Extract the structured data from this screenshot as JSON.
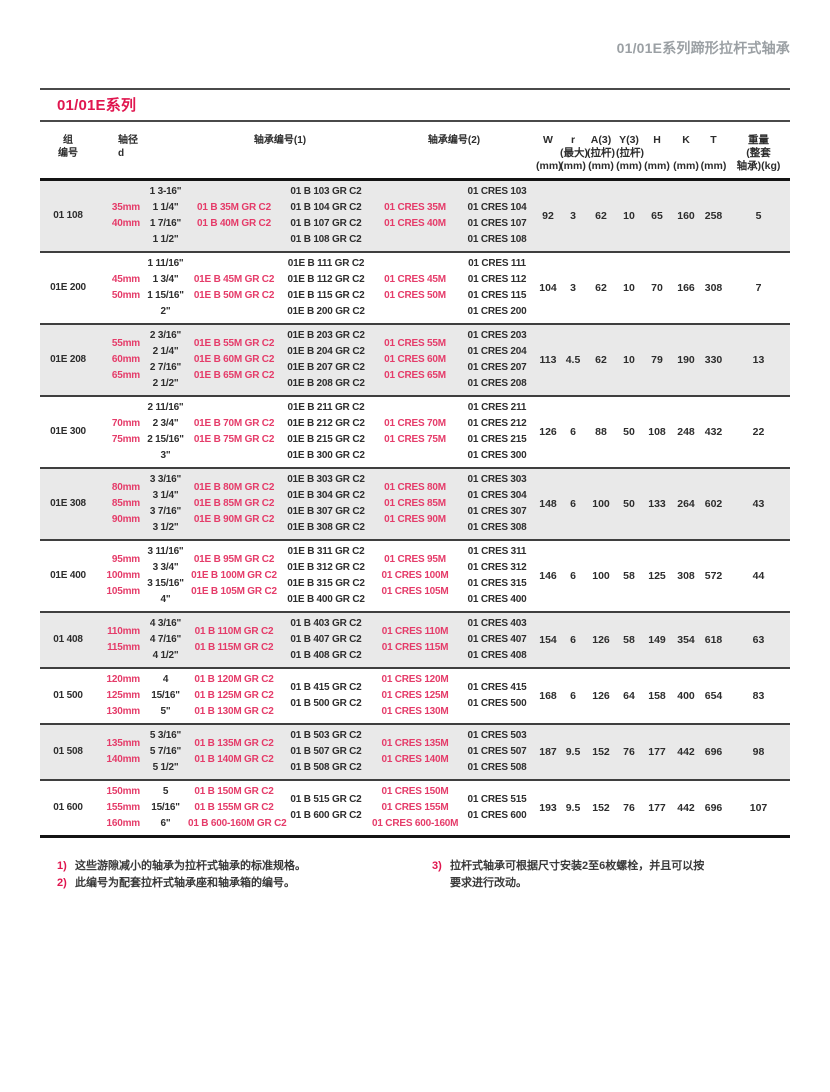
{
  "page": {
    "doc_title": "01/01E系列蹄形拉杆式轴承"
  },
  "section": {
    "title": "01/01E系列"
  },
  "colors": {
    "accent_pink": "#e0164f",
    "table_pink": "#e53b69",
    "title_gray": "#9ba0a4",
    "row_band_gray": "#e9e9e9"
  },
  "table": {
    "headers": {
      "group": [
        "组",
        "编号"
      ],
      "diameter": [
        "轴径",
        "d"
      ],
      "bearing1": "轴承编号(1)",
      "bearing2": "轴承编号(2)",
      "metrics": [
        {
          "sym": "W",
          "qual": "",
          "unit": "(mm)"
        },
        {
          "sym": "r",
          "qual": "(最大)",
          "unit": "(mm)"
        },
        {
          "sym": "A(3)",
          "qual": "(拉杆)",
          "unit": "(mm)"
        },
        {
          "sym": "Y(3)",
          "qual": "(拉杆)",
          "unit": "(mm)"
        },
        {
          "sym": "H",
          "qual": "",
          "unit": "(mm)"
        },
        {
          "sym": "K",
          "qual": "",
          "unit": "(mm)"
        },
        {
          "sym": "T",
          "qual": "",
          "unit": "(mm)"
        },
        {
          "sym": "重量",
          "qual": "(整套",
          "unit": "轴承)(kg)"
        }
      ]
    },
    "rows": [
      {
        "group": "01 108",
        "mm": [
          "35mm",
          "40mm"
        ],
        "inch": [
          "1 3-16\"",
          "1 1/4\"",
          "1 7/16\"",
          "1 1/2\""
        ],
        "b1m": [
          "01 B 35M GR C2",
          "01 B 40M GR C2"
        ],
        "b1": [
          "01 B 103 GR C2",
          "01 B 104 GR C2",
          "01 B 107 GR C2",
          "01 B 108 GR C2"
        ],
        "b2m": [
          "01 CRES 35M",
          "01 CRES 40M"
        ],
        "b2": [
          "01 CRES 103",
          "01 CRES 104",
          "01 CRES 107",
          "01 CRES 108"
        ],
        "vals": [
          "92",
          "3",
          "62",
          "10",
          "65",
          "160",
          "258",
          "5"
        ]
      },
      {
        "group": "01E 200",
        "mm": [
          "45mm",
          "50mm"
        ],
        "inch": [
          "1 11/16\"",
          "1 3/4\"",
          "1 15/16\"",
          "2\""
        ],
        "b1m": [
          "01E B 45M GR C2",
          "01E B 50M GR C2"
        ],
        "b1": [
          "01E B 111 GR C2",
          "01E B 112 GR C2",
          "01E B 115 GR C2",
          "01E B 200 GR C2"
        ],
        "b2m": [
          "01 CRES 45M",
          "01 CRES 50M"
        ],
        "b2": [
          "01 CRES 111",
          "01 CRES 112",
          "01 CRES 115",
          "01 CRES 200"
        ],
        "vals": [
          "104",
          "3",
          "62",
          "10",
          "70",
          "166",
          "308",
          "7"
        ]
      },
      {
        "group": "01E 208",
        "mm": [
          "55mm",
          "60mm",
          "65mm"
        ],
        "inch": [
          "2 3/16\"",
          "2 1/4\"",
          "2 7/16\"",
          "2 1/2\""
        ],
        "b1m": [
          "01E B 55M GR C2",
          "01E B 60M GR C2",
          "01E B 65M GR C2"
        ],
        "b1": [
          "01E B 203 GR C2",
          "01E B 204 GR C2",
          "01E B 207 GR C2",
          "01E B 208 GR C2"
        ],
        "b2m": [
          "01 CRES 55M",
          "01 CRES 60M",
          "01 CRES 65M"
        ],
        "b2": [
          "01 CRES 203",
          "01 CRES 204",
          "01 CRES 207",
          "01 CRES 208"
        ],
        "vals": [
          "113",
          "4.5",
          "62",
          "10",
          "79",
          "190",
          "330",
          "13"
        ]
      },
      {
        "group": "01E 300",
        "mm": [
          "70mm",
          "75mm"
        ],
        "inch": [
          "2 11/16\"",
          "2 3/4\"",
          "2 15/16\"",
          "3\""
        ],
        "b1m": [
          "01E B 70M GR C2",
          "01E B 75M GR C2"
        ],
        "b1": [
          "01E B 211 GR C2",
          "01E B 212 GR C2",
          "01E B 215 GR C2",
          "01E B 300 GR C2"
        ],
        "b2m": [
          "01 CRES 70M",
          "01 CRES 75M"
        ],
        "b2": [
          "01 CRES 211",
          "01 CRES 212",
          "01 CRES 215",
          "01 CRES 300"
        ],
        "vals": [
          "126",
          "6",
          "88",
          "50",
          "108",
          "248",
          "432",
          "22"
        ]
      },
      {
        "group": "01E 308",
        "mm": [
          "80mm",
          "85mm",
          "90mm"
        ],
        "inch": [
          "3 3/16\"",
          "3 1/4\"",
          "3 7/16\"",
          "3 1/2\""
        ],
        "b1m": [
          "01E B 80M GR C2",
          "01E B 85M GR C2",
          "01E B 90M GR C2"
        ],
        "b1": [
          "01E B 303 GR C2",
          "01E B 304 GR C2",
          "01E B 307 GR C2",
          "01E B 308 GR C2"
        ],
        "b2m": [
          "01 CRES 80M",
          "01 CRES 85M",
          "01 CRES 90M"
        ],
        "b2": [
          "01 CRES 303",
          "01 CRES 304",
          "01 CRES 307",
          "01 CRES 308"
        ],
        "vals": [
          "148",
          "6",
          "100",
          "50",
          "133",
          "264",
          "602",
          "43"
        ]
      },
      {
        "group": "01E 400",
        "mm": [
          "95mm",
          "100mm",
          "105mm"
        ],
        "inch": [
          "3 11/16\"",
          "3 3/4\"",
          "3 15/16\"",
          "4\""
        ],
        "b1m": [
          "01E B 95M GR C2",
          "01E B 100M GR C2",
          "01E B 105M GR C2"
        ],
        "b1": [
          "01E B 311 GR C2",
          "01E B 312 GR C2",
          "01E B 315 GR C2",
          "01E B 400 GR C2"
        ],
        "b2m": [
          "01 CRES 95M",
          "01 CRES 100M",
          "01 CRES 105M"
        ],
        "b2": [
          "01 CRES 311",
          "01 CRES 312",
          "01 CRES 315",
          "01 CRES 400"
        ],
        "vals": [
          "146",
          "6",
          "100",
          "58",
          "125",
          "308",
          "572",
          "44"
        ]
      },
      {
        "group": "01 408",
        "mm": [
          "110mm",
          "115mm"
        ],
        "inch": [
          "4 3/16\"",
          "4 7/16\"",
          "4 1/2\""
        ],
        "b1m": [
          "01 B 110M GR C2",
          "01 B 115M GR C2"
        ],
        "b1": [
          "01 B 403 GR C2",
          "01 B 407 GR C2",
          "01 B 408 GR C2"
        ],
        "b2m": [
          "01 CRES 110M",
          "01 CRES 115M"
        ],
        "b2": [
          "01 CRES 403",
          "01 CRES 407",
          "01 CRES 408"
        ],
        "vals": [
          "154",
          "6",
          "126",
          "58",
          "149",
          "354",
          "618",
          "63"
        ]
      },
      {
        "group": "01 500",
        "mm": [
          "120mm",
          "125mm",
          "130mm"
        ],
        "inch": [
          "4",
          "15/16\"",
          "5\""
        ],
        "b1m": [
          "01 B 120M GR C2",
          "01 B 125M GR C2",
          "01 B 130M GR C2"
        ],
        "b1": [
          "01 B 415 GR C2",
          "01 B 500 GR C2"
        ],
        "b2m": [
          "01 CRES 120M",
          "01 CRES 125M",
          "01 CRES 130M"
        ],
        "b2": [
          "01 CRES 415",
          "01 CRES 500"
        ],
        "vals": [
          "168",
          "6",
          "126",
          "64",
          "158",
          "400",
          "654",
          "83"
        ]
      },
      {
        "group": "01 508",
        "mm": [
          "135mm",
          "140mm"
        ],
        "inch": [
          "5 3/16\"",
          "5 7/16\"",
          "5 1/2\""
        ],
        "b1m": [
          "01 B 135M GR C2",
          "01 B 140M GR C2"
        ],
        "b1": [
          "01 B 503 GR C2",
          "01 B 507 GR C2",
          "01 B 508 GR C2"
        ],
        "b2m": [
          "01 CRES 135M",
          "01 CRES 140M"
        ],
        "b2": [
          "01 CRES 503",
          "01 CRES 507",
          "01 CRES 508"
        ],
        "vals": [
          "187",
          "9.5",
          "152",
          "76",
          "177",
          "442",
          "696",
          "98"
        ]
      },
      {
        "group": "01 600",
        "mm": [
          "150mm",
          "155mm",
          "160mm"
        ],
        "inch": [
          "5",
          "15/16\"",
          "6\""
        ],
        "b1m": [
          "01 B 150M GR C2",
          "01 B 155M GR C2",
          "01 B 600-160M GR C2"
        ],
        "b1": [
          "01 B 515 GR C2",
          "01 B 600 GR C2"
        ],
        "b2m": [
          "01 CRES 150M",
          "01 CRES 155M",
          "01 CRES 600-160M"
        ],
        "b2": [
          "01 CRES 515",
          "01 CRES 600"
        ],
        "vals": [
          "193",
          "9.5",
          "152",
          "76",
          "177",
          "442",
          "696",
          "107"
        ]
      }
    ]
  },
  "footnotes": [
    {
      "num": "1)",
      "text": "这些游隙减小的轴承为拉杆式轴承的标准规格。"
    },
    {
      "num": "2)",
      "text": "此编号为配套拉杆式轴承座和轴承箱的编号。"
    },
    {
      "num": "3)",
      "text": "拉杆式轴承可根据尺寸安装2至6枚螺栓，并且可以按要求进行改动。"
    }
  ]
}
